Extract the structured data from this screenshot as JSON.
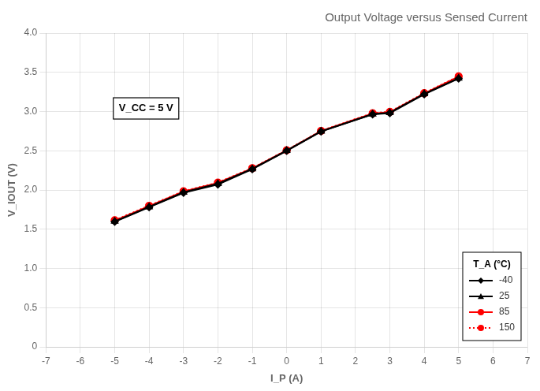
{
  "chart_data": {
    "type": "line",
    "title": "Output Voltage versus Sensed Current",
    "xlabel": "I_P (A)",
    "ylabel": "V_IOUT (V)",
    "annotation": "V_CC = 5 V",
    "legend_title": "T_A (°C)",
    "xlim": [
      -7,
      7
    ],
    "ylim": [
      0,
      4
    ],
    "xticks": [
      -7,
      -6,
      -5,
      -4,
      -3,
      -2,
      -1,
      0,
      1,
      2,
      3,
      4,
      5,
      6,
      7
    ],
    "yticks": [
      0,
      0.5,
      {
        "value": 1,
        "label": "1.0"
      },
      1.5,
      {
        "value": 2,
        "label": "2.0"
      },
      2.5,
      {
        "value": 3,
        "label": "3.0"
      },
      3.5,
      {
        "value": 4,
        "label": "4.0"
      }
    ],
    "grid": true,
    "legend": "lower right",
    "x": [
      -5,
      -4,
      -3,
      -2,
      -1,
      0,
      1,
      2.5,
      3,
      4,
      5
    ],
    "series": [
      {
        "name": "-40",
        "color": "black",
        "marker": "diamond",
        "line_style": "solid",
        "values": [
          1.595,
          1.78,
          1.965,
          2.07,
          2.265,
          2.5,
          2.745,
          2.965,
          2.98,
          3.22,
          3.42
        ]
      },
      {
        "name": "25",
        "color": "black",
        "marker": "triangle",
        "line_style": "solid",
        "values": [
          1.6,
          1.785,
          1.97,
          2.08,
          2.27,
          2.502,
          2.748,
          2.968,
          2.985,
          3.225,
          3.425
        ]
      },
      {
        "name": "85",
        "color": "red",
        "marker": "circle",
        "line_style": "solid",
        "values": [
          1.61,
          1.795,
          1.98,
          2.09,
          2.275,
          2.505,
          2.752,
          2.975,
          2.992,
          3.23,
          3.445
        ]
      },
      {
        "name": "150",
        "color": "red",
        "marker": "circle",
        "line_style": "dotted",
        "values": [
          1.615,
          1.8,
          1.985,
          2.095,
          2.28,
          2.508,
          2.755,
          2.98,
          2.998,
          3.235,
          3.45
        ]
      }
    ]
  }
}
